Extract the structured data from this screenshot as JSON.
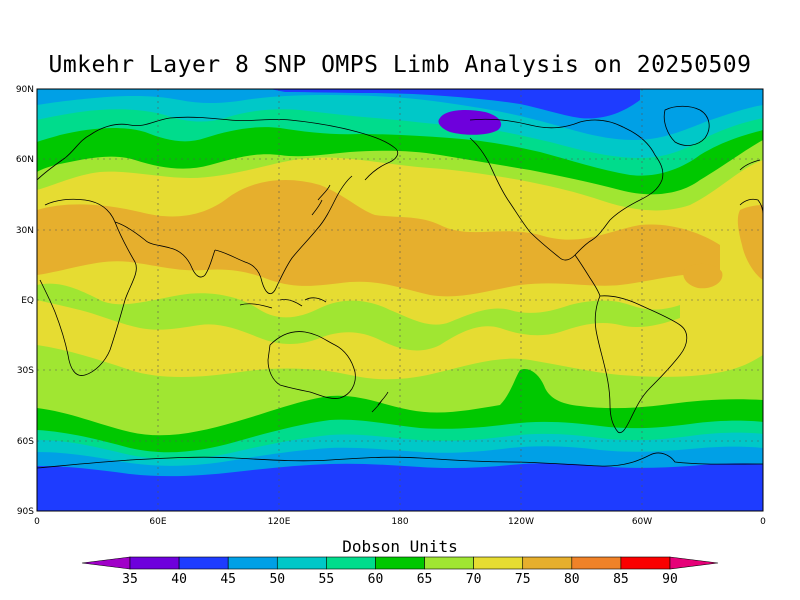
{
  "title": "Umkehr Layer 8 SNP OMPS Limb Analysis on 20250509",
  "lat_labels": [
    "90N",
    "60N",
    "30N",
    "EQ",
    "30S",
    "60S",
    "90S"
  ],
  "lon_labels": [
    "0",
    "60E",
    "120E",
    "180",
    "120W",
    "60W",
    "0"
  ],
  "colorbar": {
    "title": "Dobson Units",
    "levels": [
      "35",
      "40",
      "45",
      "50",
      "55",
      "60",
      "65",
      "70",
      "75",
      "80",
      "85",
      "90"
    ],
    "colors": [
      "#a000c8",
      "#6e00dc",
      "#1e3cff",
      "#00a0e6",
      "#00c8c8",
      "#00dc8c",
      "#00c800",
      "#a0e632",
      "#e6dc32",
      "#e6af2d",
      "#f08228",
      "#fa0000",
      "#e60078"
    ]
  },
  "colors": {
    "c40": "#1e3cff",
    "c45": "#00a0e6",
    "c50": "#00c8c8",
    "c55": "#00dc8c",
    "c60": "#00c800",
    "c65": "#a0e632",
    "c70": "#e6dc32",
    "c75": "#e6af2d",
    "c35": "#6e00dc",
    "grid": "#555555",
    "coast": "#000000"
  }
}
